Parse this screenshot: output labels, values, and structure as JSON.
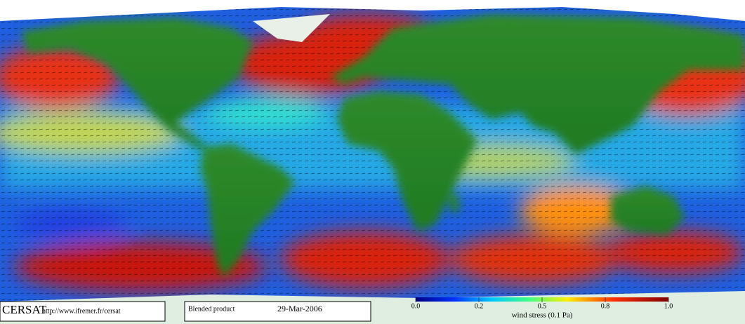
{
  "footer": {
    "logo": "CERSAT",
    "url": "http://www.ifremer.fr/cersat",
    "product": "Blended product",
    "date": "29-Mar-2006"
  },
  "colorbar": {
    "range": [
      0,
      1
    ],
    "ticks": [
      {
        "value": 0,
        "label": "0.0"
      },
      {
        "value": 0.2,
        "label": "0.2"
      },
      {
        "value": 0.5,
        "label": "0.5"
      },
      {
        "value": 0.8,
        "label": "0.8"
      },
      {
        "value": 1,
        "label": "1.0"
      }
    ],
    "label": "wind stress (0.1 Pa)"
  }
}
